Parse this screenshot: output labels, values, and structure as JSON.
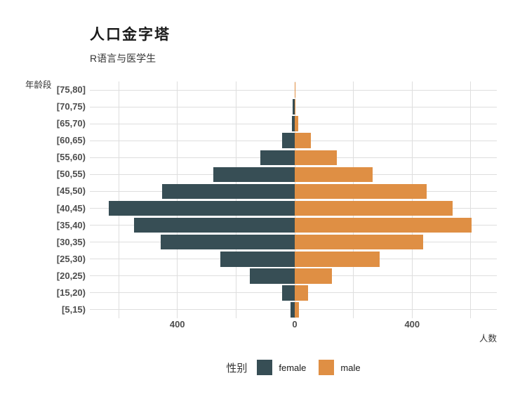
{
  "page": {
    "background": "#ffffff"
  },
  "chart_data": {
    "type": "bar",
    "variant": "population_pyramid",
    "orientation": "horizontal",
    "title": "人口金字塔",
    "subtitle": "R语言与医学生",
    "xlabel": "人数",
    "ylabel": "年龄段",
    "categories_top_to_bottom": [
      "[75,80]",
      "[70,75)",
      "[65,70)",
      "[60,65)",
      "[55,60)",
      "[50,55)",
      "[45,50)",
      "[40,45)",
      "[35,40)",
      "[30,35)",
      "[25,30)",
      "[20,25)",
      "[15,20)",
      "[5,15)"
    ],
    "series": [
      {
        "name": "female",
        "side": "left",
        "color": "#374E55",
        "values": [
          1,
          6,
          10,
          44,
          117,
          278,
          451,
          633,
          547,
          457,
          254,
          154,
          43,
          14
        ]
      },
      {
        "name": "male",
        "side": "right",
        "color": "#DF8F44",
        "values": [
          1,
          2,
          13,
          56,
          144,
          266,
          450,
          539,
          602,
          438,
          289,
          127,
          46,
          14
        ]
      }
    ],
    "x_axis": {
      "tick_values": [
        -400,
        0,
        400
      ],
      "tick_labels": [
        "400",
        "0",
        "400"
      ],
      "gridline_values": [
        -600,
        -400,
        -200,
        0,
        200,
        400,
        600
      ],
      "xlim": [
        -700,
        690
      ]
    },
    "y_axis": {
      "gridlines": "one_per_category"
    },
    "legend": {
      "title": "性别",
      "position": "bottom",
      "entries": [
        {
          "label": "female",
          "color": "#374E55"
        },
        {
          "label": "male",
          "color": "#DF8F44"
        }
      ]
    },
    "style_colors": {
      "gridline": "#dedede",
      "tick_text": "#4d4d4d",
      "title_text": "#1a1a1a"
    },
    "grid": true
  }
}
